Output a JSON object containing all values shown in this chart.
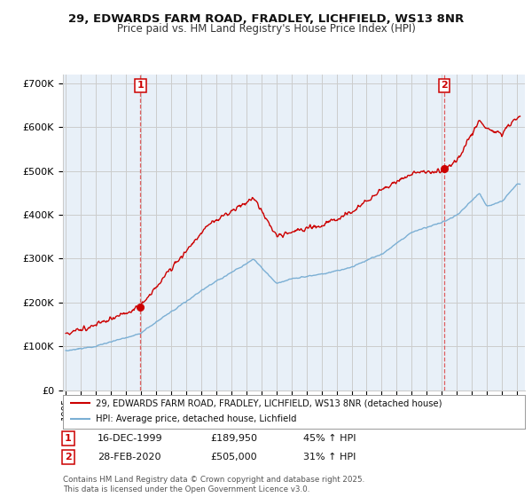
{
  "title_line1": "29, EDWARDS FARM ROAD, FRADLEY, LICHFIELD, WS13 8NR",
  "title_line2": "Price paid vs. HM Land Registry's House Price Index (HPI)",
  "legend_label_red": "29, EDWARDS FARM ROAD, FRADLEY, LICHFIELD, WS13 8NR (detached house)",
  "legend_label_blue": "HPI: Average price, detached house, Lichfield",
  "sale1_date": "16-DEC-1999",
  "sale1_price": "£189,950",
  "sale1_change": "45% ↑ HPI",
  "sale2_date": "28-FEB-2020",
  "sale2_price": "£505,000",
  "sale2_change": "31% ↑ HPI",
  "footnote": "Contains HM Land Registry data © Crown copyright and database right 2025.\nThis data is licensed under the Open Government Licence v3.0.",
  "red_color": "#cc0000",
  "blue_color": "#7bafd4",
  "vline_color": "#dd4444",
  "grid_color": "#cccccc",
  "chart_bg": "#e8f0f8",
  "background_color": "#ffffff",
  "ylim": [
    0,
    720000
  ],
  "yticks": [
    0,
    100000,
    200000,
    300000,
    400000,
    500000,
    600000,
    700000
  ],
  "sale1_x": 1999.96,
  "sale1_y": 189950,
  "sale2_x": 2020.16,
  "sale2_y": 505000,
  "xlim_left": 1994.8,
  "xlim_right": 2025.5
}
